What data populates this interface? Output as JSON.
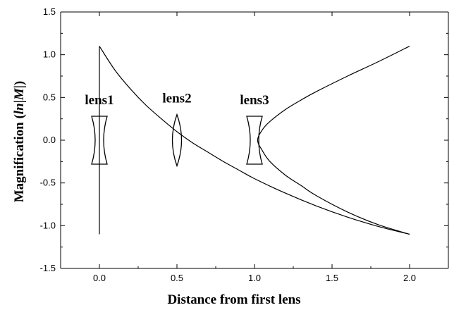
{
  "chart_data": {
    "type": "line",
    "title": "",
    "xlabel": "Distance from first lens",
    "ylabel_parts": [
      "Magnification (",
      "ln",
      "|",
      "M",
      "|)"
    ],
    "xlim": [
      -0.25,
      2.25
    ],
    "ylim": [
      -1.5,
      1.5
    ],
    "x_ticks": [
      0.0,
      0.5,
      1.0,
      1.5,
      2.0
    ],
    "x_tick_labels": [
      "0.0",
      "0.5",
      "1.0",
      "1.5",
      "2.0"
    ],
    "y_ticks": [
      -1.5,
      -1.0,
      -0.5,
      0.0,
      0.5,
      1.0,
      1.5
    ],
    "y_tick_labels": [
      "-1.5",
      "-1.0",
      "-0.5",
      "0.0",
      "0.5",
      "1.0",
      "1.5"
    ],
    "grid": false,
    "series": [
      {
        "points": [
          [
            0.0,
            1.1
          ],
          [
            0.1,
            0.82
          ],
          [
            0.2,
            0.6
          ],
          [
            0.3,
            0.41
          ],
          [
            0.4,
            0.25
          ],
          [
            0.5,
            0.1
          ],
          [
            0.6,
            -0.03
          ],
          [
            0.7,
            -0.14
          ],
          [
            0.8,
            -0.25
          ],
          [
            0.9,
            -0.35
          ],
          [
            1.0,
            -0.45
          ],
          [
            1.2,
            -0.62
          ],
          [
            1.4,
            -0.77
          ],
          [
            1.6,
            -0.9
          ],
          [
            1.8,
            -1.01
          ],
          [
            2.0,
            -1.1
          ]
        ]
      },
      {
        "points": [
          [
            2.0,
            1.1
          ],
          [
            1.8,
            0.92
          ],
          [
            1.6,
            0.75
          ],
          [
            1.4,
            0.57
          ],
          [
            1.3,
            0.47
          ],
          [
            1.2,
            0.36
          ],
          [
            1.1,
            0.22
          ],
          [
            1.05,
            0.12
          ],
          [
            1.02,
            0.0
          ],
          [
            1.05,
            -0.12
          ],
          [
            1.1,
            -0.25
          ],
          [
            1.2,
            -0.41
          ],
          [
            1.3,
            -0.53
          ],
          [
            1.4,
            -0.65
          ],
          [
            1.6,
            -0.84
          ],
          [
            1.8,
            -0.99
          ],
          [
            2.0,
            -1.1
          ]
        ]
      },
      {
        "points": [
          [
            0.0,
            1.1
          ],
          [
            0.0,
            -1.1
          ]
        ]
      }
    ],
    "lenses": [
      {
        "label": "lens1",
        "x": 0.0,
        "kind": "concave",
        "ymin": -0.28,
        "ymax": 0.28
      },
      {
        "label": "lens2",
        "x": 0.5,
        "kind": "convex",
        "ymin": -0.3,
        "ymax": 0.3
      },
      {
        "label": "lens3",
        "x": 1.0,
        "kind": "concave",
        "ymin": -0.28,
        "ymax": 0.28
      }
    ],
    "colors": {
      "line": "#000000",
      "axis": "#000000"
    }
  }
}
